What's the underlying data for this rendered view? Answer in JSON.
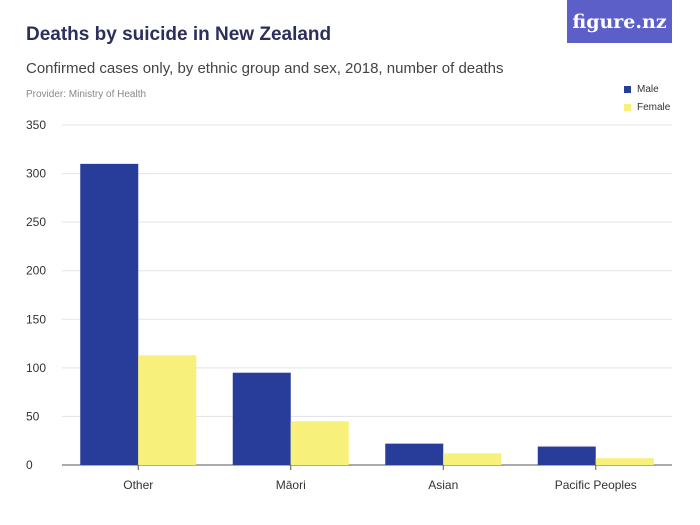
{
  "logo": {
    "text": "figure.nz"
  },
  "chart_data": {
    "type": "bar",
    "title": "Deaths by suicide in New Zealand",
    "subtitle": "Confirmed cases only, by ethnic group and sex, 2018, number of deaths",
    "provider": "Provider: Ministry of Health",
    "categories": [
      "Other",
      "Māori",
      "Asian",
      "Pacific Peoples"
    ],
    "series": [
      {
        "name": "Male",
        "color": "#283c9a",
        "values": [
          310,
          95,
          22,
          19
        ]
      },
      {
        "name": "Female",
        "color": "#f7f07a",
        "values": [
          113,
          45,
          12,
          7
        ]
      }
    ],
    "yticks": [
      0,
      50,
      100,
      150,
      200,
      250,
      300,
      350
    ],
    "ylim": [
      0,
      350
    ],
    "xlabel": "",
    "ylabel": "",
    "legend_position": "top-right",
    "grid": true
  }
}
